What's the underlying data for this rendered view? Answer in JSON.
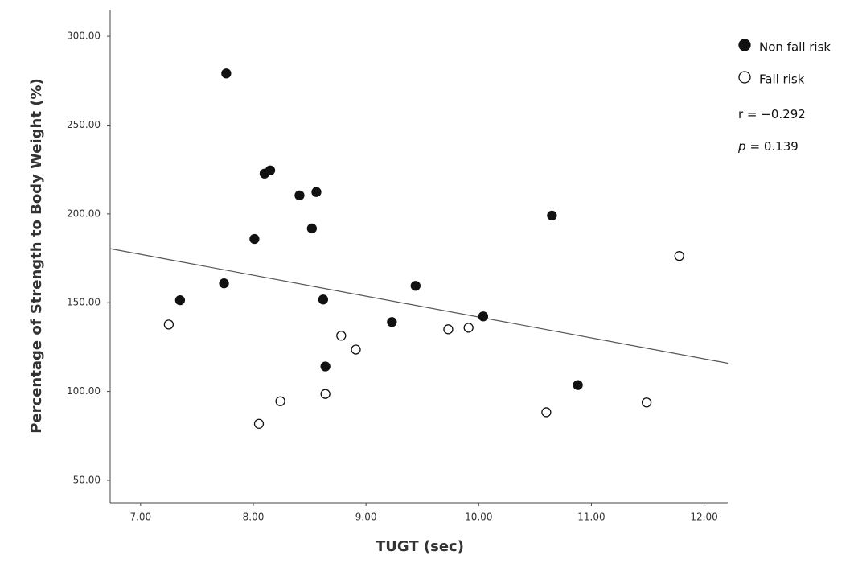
{
  "chart_data": {
    "type": "scatter",
    "x_label": "TUGT (sec)",
    "y_label": "Percentage of Strength to Body Weight (%)",
    "xlim": [
      6.73,
      12.21
    ],
    "ylim": [
      37.3,
      315
    ],
    "xticks": [
      {
        "value": 7,
        "label": "7.00"
      },
      {
        "value": 8,
        "label": "8.00"
      },
      {
        "value": 9,
        "label": "9.00"
      },
      {
        "value": 10,
        "label": "10.00"
      },
      {
        "value": 11,
        "label": "11.00"
      },
      {
        "value": 12,
        "label": "12.00"
      }
    ],
    "yticks": [
      {
        "value": 50,
        "label": "50.00"
      },
      {
        "value": 100,
        "label": "100.00"
      },
      {
        "value": 150,
        "label": "150.00"
      },
      {
        "value": 200,
        "label": "200.00"
      },
      {
        "value": 250,
        "label": "250.00"
      },
      {
        "value": 300,
        "label": "300.00"
      }
    ],
    "series": [
      {
        "name": "Non fall risk",
        "color": "#111111",
        "marker": "filled",
        "x": [
          7.35,
          7.76,
          7.74,
          8.01,
          8.1,
          8.15,
          8.41,
          8.56,
          8.52,
          8.62,
          8.64,
          9.23,
          9.44,
          10.04,
          10.65,
          10.88
        ],
        "values": [
          151.4,
          279.1,
          160.9,
          185.9,
          222.7,
          224.5,
          210.4,
          212.3,
          191.8,
          151.8,
          114.1,
          139.1,
          159.5,
          142.3,
          199.1,
          103.6
        ]
      },
      {
        "name": "Fall risk",
        "color": "#111111",
        "marker": "open",
        "x": [
          7.25,
          8.05,
          8.24,
          8.64,
          8.78,
          8.91,
          9.73,
          9.91,
          10.6,
          11.49,
          11.78
        ],
        "values": [
          137.7,
          81.8,
          94.5,
          98.6,
          131.4,
          123.6,
          135.0,
          135.9,
          88.3,
          93.8,
          176.3
        ]
      }
    ],
    "fit_line": {
      "color": "#555555",
      "x": [
        6.73,
        12.21
      ],
      "values": [
        180.4,
        115.9
      ]
    },
    "annotations": [
      [
        "r = −0.292"
      ],
      [
        "p",
        "= 0.139"
      ]
    ]
  }
}
